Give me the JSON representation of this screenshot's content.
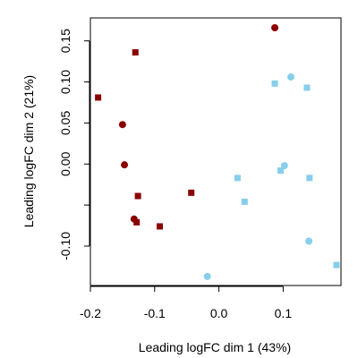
{
  "chart_data": {
    "type": "scatter",
    "title": "",
    "xlabel": "Leading logFC dim 1 (43%)",
    "ylabel": "Leading logFC dim 2 (21%)",
    "xlim": [
      -0.2,
      0.19
    ],
    "ylim": [
      -0.148,
      0.178
    ],
    "x_ticks": [
      {
        "value": -0.2,
        "label": "-0.2"
      },
      {
        "value": -0.1,
        "label": "-0.1"
      },
      {
        "value": 0.0,
        "label": "0.0"
      },
      {
        "value": 0.1,
        "label": "0.1"
      }
    ],
    "y_ticks": [
      {
        "value": 0.15,
        "label": "0.15"
      },
      {
        "value": 0.1,
        "label": "0.10"
      },
      {
        "value": 0.05,
        "label": "0.05"
      },
      {
        "value": 0.0,
        "label": "0.00"
      },
      {
        "value": -0.05,
        "label": ""
      },
      {
        "value": -0.1,
        "label": "-0.10"
      }
    ],
    "grid": false,
    "legend": "none",
    "colors": {
      "darkred": "#8b0000",
      "skyblue": "#87ceeb"
    },
    "points": [
      {
        "x": 0.087,
        "y": 0.166,
        "color": "darkred",
        "shape": "circle"
      },
      {
        "x": -0.13,
        "y": 0.136,
        "color": "darkred",
        "shape": "square"
      },
      {
        "x": -0.188,
        "y": 0.081,
        "color": "darkred",
        "shape": "square"
      },
      {
        "x": -0.15,
        "y": 0.048,
        "color": "darkred",
        "shape": "circle"
      },
      {
        "x": -0.147,
        "y": -0.001,
        "color": "darkred",
        "shape": "circle"
      },
      {
        "x": -0.126,
        "y": -0.039,
        "color": "darkred",
        "shape": "square"
      },
      {
        "x": -0.043,
        "y": -0.035,
        "color": "darkred",
        "shape": "square"
      },
      {
        "x": -0.132,
        "y": -0.067,
        "color": "darkred",
        "shape": "circle"
      },
      {
        "x": -0.128,
        "y": -0.071,
        "color": "darkred",
        "shape": "square"
      },
      {
        "x": -0.092,
        "y": -0.076,
        "color": "darkred",
        "shape": "square"
      },
      {
        "x": 0.112,
        "y": 0.106,
        "color": "skyblue",
        "shape": "circle"
      },
      {
        "x": 0.087,
        "y": 0.098,
        "color": "skyblue",
        "shape": "square"
      },
      {
        "x": 0.137,
        "y": 0.093,
        "color": "skyblue",
        "shape": "square"
      },
      {
        "x": 0.102,
        "y": -0.002,
        "color": "skyblue",
        "shape": "circle"
      },
      {
        "x": 0.096,
        "y": -0.008,
        "color": "skyblue",
        "shape": "square"
      },
      {
        "x": 0.029,
        "y": -0.017,
        "color": "skyblue",
        "shape": "square"
      },
      {
        "x": 0.141,
        "y": -0.017,
        "color": "skyblue",
        "shape": "square"
      },
      {
        "x": 0.04,
        "y": -0.046,
        "color": "skyblue",
        "shape": "square"
      },
      {
        "x": 0.14,
        "y": -0.094,
        "color": "skyblue",
        "shape": "circle"
      },
      {
        "x": 0.183,
        "y": -0.123,
        "color": "skyblue",
        "shape": "square"
      },
      {
        "x": -0.018,
        "y": -0.137,
        "color": "skyblue",
        "shape": "circle"
      }
    ]
  }
}
